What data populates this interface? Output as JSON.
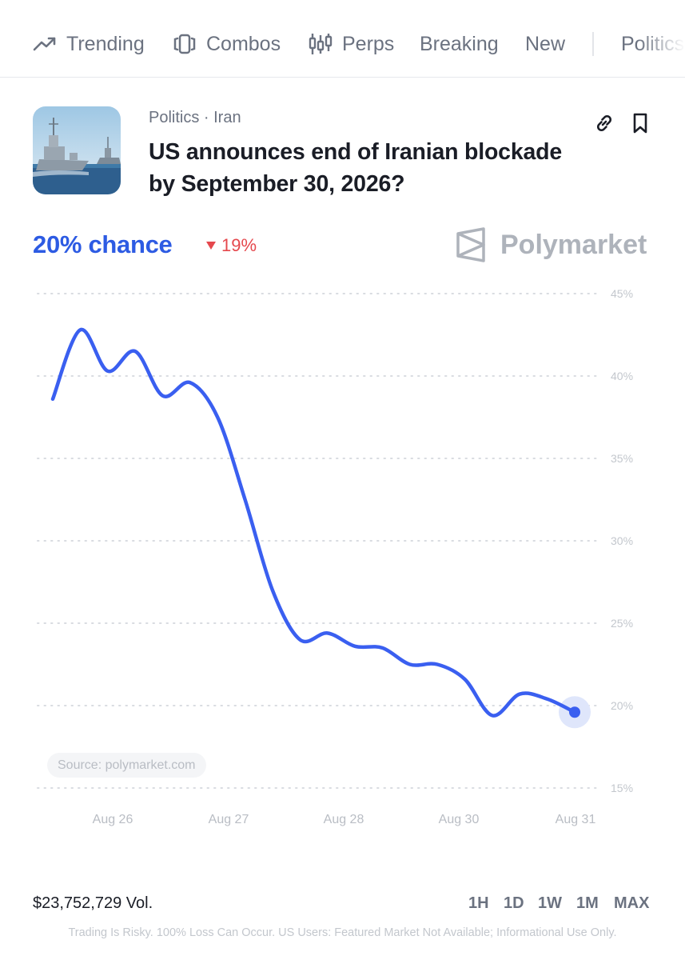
{
  "nav": {
    "items": [
      {
        "label": "Trending",
        "icon": "trending-icon"
      },
      {
        "label": "Combos",
        "icon": "combos-icon"
      },
      {
        "label": "Perps",
        "icon": "candlestick-icon"
      },
      {
        "label": "Breaking"
      },
      {
        "label": "New"
      },
      {
        "label": "Politics"
      }
    ]
  },
  "market": {
    "category": "Politics · Iran",
    "title": "US announces end of Iranian blockade by September 30, 2026?",
    "thumbnail_icon": "warships-image",
    "link_icon": "link-icon",
    "bookmark_icon": "bookmark-icon",
    "chance_label": "20% chance",
    "delta": "19%",
    "delta_direction": "down",
    "brand": "Polymarket"
  },
  "colors": {
    "accent": "#2d5be3",
    "line": "#3a5ff0",
    "negative": "#e5484d",
    "muted": "#6b7280",
    "grid": "#d9dce1"
  },
  "chart_data": {
    "type": "line",
    "x_ticks": [
      "Aug 26",
      "Aug 27",
      "Aug 28",
      "Aug 30",
      "Aug 31"
    ],
    "y_ticks": [
      "45%",
      "40%",
      "35%",
      "30%",
      "25%",
      "20%",
      "15%"
    ],
    "ylim": [
      15,
      45
    ],
    "grid": true,
    "series": [
      {
        "values": [
          38.6,
          42.8,
          40.3,
          41.5,
          38.8,
          39.6,
          37.5,
          32.5,
          27.0,
          24.0,
          24.4,
          23.6,
          23.5,
          22.5,
          22.5,
          21.6,
          19.4,
          20.7,
          20.4,
          19.6
        ]
      }
    ],
    "last_value": 19.6
  },
  "source": "Source: polymarket.com",
  "footer": {
    "volume": "$23,752,729 Vol.",
    "ranges": [
      "1H",
      "1D",
      "1W",
      "1M",
      "MAX"
    ],
    "disclaimer": "Trading Is Risky. 100% Loss Can Occur. US Users: Featured Market Not Available; Informational Use Only."
  }
}
